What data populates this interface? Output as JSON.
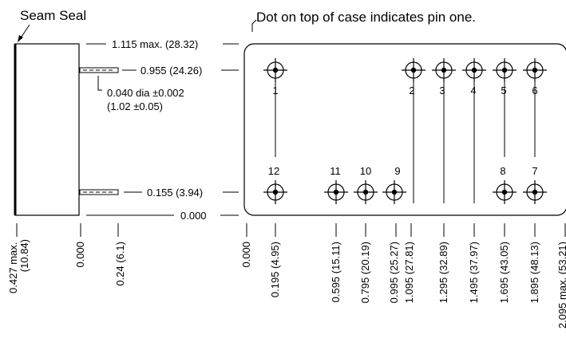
{
  "labels": {
    "seam_seal": "Seam Seal",
    "pin_one_note": "Dot on top of case indicates pin one.",
    "dim_top_case": "1.115 max. (28.32)",
    "dim_top_pin_row": "0.955 (24.26)",
    "pin_dia_line1": "0.040 dia ±0.002",
    "pin_dia_line2": "(1.02 ±0.05)",
    "dim_bottom_pin_row": "0.155 (3.94)",
    "dim_zero_vertical": "0.000"
  },
  "pins": [
    "1",
    "2",
    "3",
    "4",
    "5",
    "6",
    "7",
    "8",
    "9",
    "10",
    "11",
    "12"
  ],
  "bottom_dims": {
    "side_view": [
      "0.427 max. (10.84)",
      "0.000",
      "0.24 (6.1)"
    ],
    "top_view": [
      "0.000",
      "0.195 (4.95)",
      "0.595 (15.11)",
      "0.795 (20.19)",
      "0.995 (25.27)",
      "1.095 (27.81)",
      "1.295 (32.89)",
      "1.495 (37.97)",
      "1.695 (43.05)",
      "1.895 (48.13)",
      "2.095 max. (53.21)"
    ]
  }
}
